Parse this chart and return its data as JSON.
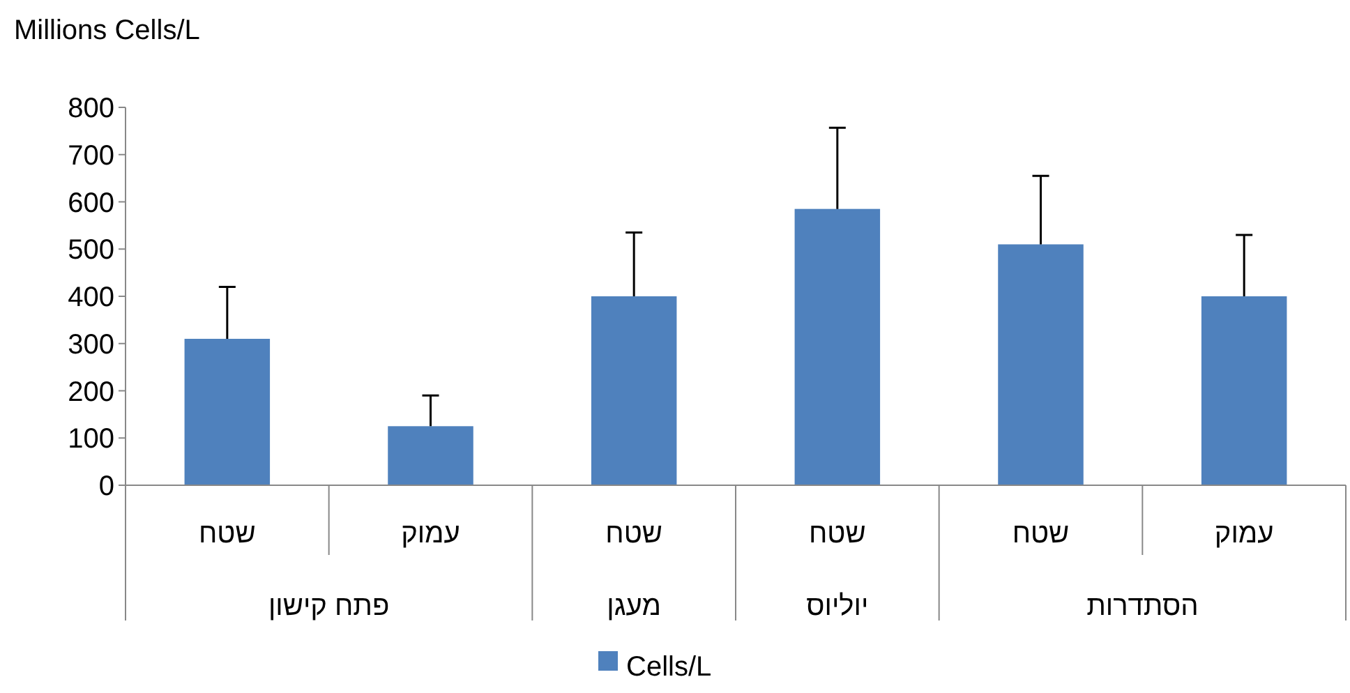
{
  "chart_data": {
    "type": "bar",
    "ylabel": "Millions Cells/L",
    "categories": [
      "שטח",
      "עמוק",
      "שטח",
      "שטח",
      "שטח",
      "עמוק"
    ],
    "series": [
      {
        "name": "Cells/L",
        "color": "#4f81bd",
        "values": [
          310,
          125,
          400,
          585,
          510,
          400
        ],
        "errors": [
          [
            310,
            420
          ],
          [
            125,
            190
          ],
          [
            400,
            535
          ],
          [
            585,
            757
          ],
          [
            510,
            655
          ],
          [
            400,
            530
          ]
        ]
      }
    ],
    "annotations": [
      "פתח קישון",
      "מעגן",
      "יוליוס",
      "הסתדרות"
    ],
    "ylim": [
      0,
      800
    ],
    "yticks": [
      0,
      100,
      200,
      300,
      400,
      500,
      600,
      700,
      800
    ],
    "grid": false,
    "legend": "bottom"
  }
}
